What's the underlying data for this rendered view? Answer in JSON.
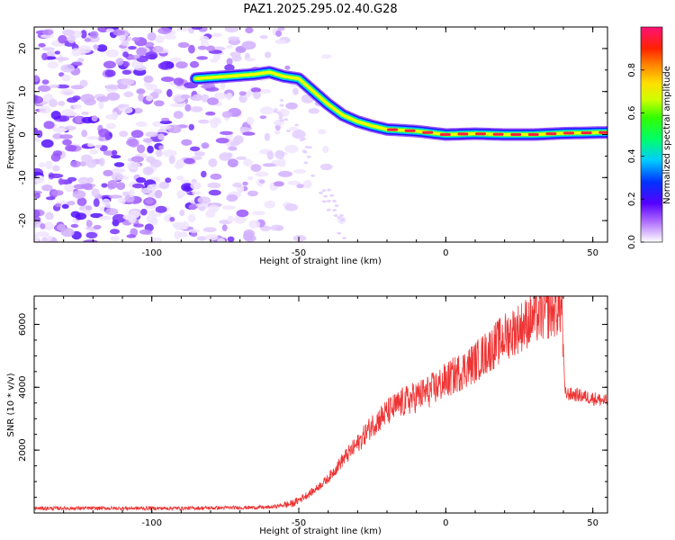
{
  "title": "PAZ1.2025.295.02.40.G28",
  "colors": {
    "snr_line": "#ee3333",
    "spectral_ridge": "#ff2040",
    "background": "#ffffff",
    "axis": "#000000"
  },
  "chart_data": [
    {
      "type": "heatmap",
      "name": "spectrogram",
      "xlabel": "Height of straight line (km)",
      "ylabel": "Frequency (Hz)",
      "xlim": [
        -140,
        55
      ],
      "ylim": [
        -25,
        25
      ],
      "x_ticks": [
        -100,
        -50,
        0,
        50
      ],
      "y_ticks": [
        -20,
        -10,
        0,
        10,
        20
      ],
      "colorbar": {
        "label": "Normalized spectral amplitude",
        "range": [
          0,
          1
        ],
        "ticks": [
          0.0,
          0.2,
          0.4,
          0.6,
          0.8
        ],
        "colormap": "rainbow"
      },
      "ridge": {
        "description": "dominant frequency vs height",
        "x": [
          -85,
          -75,
          -65,
          -60,
          -55,
          -50,
          -45,
          -40,
          -35,
          -30,
          -25,
          -20,
          -10,
          0,
          10,
          20,
          30,
          40,
          55
        ],
        "y": [
          13,
          13.5,
          14,
          14.5,
          13.5,
          13,
          10,
          7,
          4.5,
          3,
          2,
          1.2,
          0.8,
          0,
          0.2,
          0,
          0,
          0.3,
          0.5
        ]
      },
      "noise_region": [
        -140,
        -50
      ]
    },
    {
      "type": "line",
      "name": "snr",
      "xlabel": "Height of straight line (km)",
      "ylabel": "SNR (10 * v/v)",
      "xlim": [
        -140,
        55
      ],
      "ylim": [
        0,
        6900
      ],
      "x_ticks": [
        -100,
        -50,
        0,
        50
      ],
      "y_ticks": [
        2000,
        4000,
        6000
      ],
      "trend": {
        "x": [
          -140,
          -90,
          -60,
          -52,
          -45,
          -40,
          -35,
          -30,
          -25,
          -20,
          -15,
          -10,
          -5,
          0,
          5,
          10,
          15,
          20,
          25,
          30,
          35,
          39.5,
          40.5,
          45,
          55
        ],
        "y": [
          150,
          150,
          180,
          300,
          700,
          1100,
          1700,
          2200,
          2800,
          3200,
          3500,
          3700,
          3900,
          4200,
          4500,
          4800,
          5200,
          5600,
          5900,
          6200,
          6400,
          6550,
          3800,
          3750,
          3550
        ]
      }
    }
  ]
}
